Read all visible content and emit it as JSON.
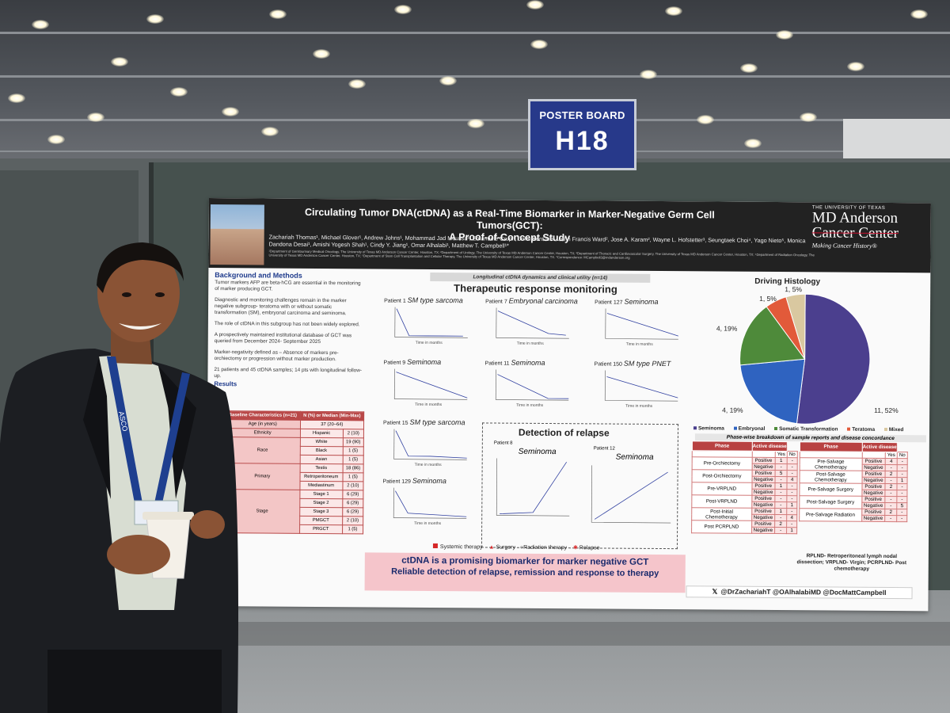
{
  "board_sign": {
    "line1": "POSTER BOARD",
    "line2": "H18"
  },
  "poster": {
    "title_line1": "Circulating Tumor DNA(ctDNA) as a Real-Time Biomarker in Marker-Negative Germ Cell Tumors(GCT):",
    "title_line2": "A Proof-of-Concept Study",
    "authors": "Zachariah Thomas¹, Michael Glover¹, Andrew Johns¹, Mohammad Jad Moussa¹, Emanuele Crupi¹, John Kent Lin¹, John Francis Ward², Jose A. Karam², Wayne L. Hofstetter³, Seungtaek Choi⁴, Yago Nieto⁵, Monica Dandona Desai¹, Amishi Yogesh Shah¹, Cindy Y. Jiang¹, Omar Alhalabi¹, Matthew T. Campbell¹*",
    "affiliations": "¹Department of Genitourinary Medical Oncology, The University of Texas MD Anderson Cancer Center, Houston, TX; ²Department of Urology, The University of Texas MD Anderson Cancer Center, Houston, TX; ³Department of Thoracic and Cardiovascular Surgery, The University of Texas MD Anderson Cancer Center, Houston, TX; ⁴Department of Radiation Oncology, The University of Texas MD Anderson Cancer Center, Houston, TX; ⁵Department of Stem Cell Transplantation and Cellular Therapy, The University of Texas MD Anderson Cancer Center, Houston, TX. *Correspondence: MCampbell3@mdanderson.org",
    "univ": {
      "l1": "THE UNIVERSITY OF TEXAS",
      "l2": "MD Anderson",
      "l3": "Cancer Center",
      "l4": "Making Cancer History®"
    },
    "background": {
      "title": "Background and Methods",
      "p1": "Tumor markers AFP are beta-hCG are essential in the monitoring of marker producing GCT.",
      "p2": "Diagnostic and monitoring challenges remain in the marker negative subgroup- teratoma with or without somatic transformation (SM), embryonal carcinoma and seminoma.",
      "p3": "The role of ctDNA in this subgroup has not been widely explored.",
      "p4": "A prospectively maintained institutional database of GCT was queried from December 2024- September 2025",
      "p5": "Marker-negativity defined as – Absence of markers pre-orchiectomy or progression without marker production.",
      "p6": "21 patients and 45 ctDNA samples; 14 pts with longitudinal follow-up.",
      "results": "Results"
    },
    "baseline_table": {
      "h1": "Baseline Characteristics (n=21)",
      "h2": "N (%) or Median (Min-Max)",
      "r_age": "Age (in years)",
      "r_age_v": "37 (20–64)",
      "eth": "Ethnicity",
      "hisp": "Hispanic",
      "hisp_v": "2 (10)",
      "race": "Race",
      "white": "White",
      "white_v": "19 (90)",
      "black": "Black",
      "black_v": "1 (5)",
      "asian": "Asian",
      "asian_v": "1 (5)",
      "primary": "Primary",
      "testis": "Testis",
      "testis_v": "18 (86)",
      "retro": "Retroperitoneum",
      "retro_v": "1 (5)",
      "media": "Mediastinum",
      "media_v": "2 (10)",
      "stage": "Stage",
      "s1": "Stage 1",
      "s1_v": "6 (29)",
      "s2": "Stage 2",
      "s2_v": "6 (29)",
      "s3": "Stage 3",
      "s3_v": "6 (29)",
      "pmgct": "PMGCT",
      "pmgct_v": "2 (10)",
      "prgct": "PRGCT",
      "prgct_v": "1 (5)"
    },
    "longitudinal_bar": "Longitudinal ctDNA dynamics and clinical utility (n=14)",
    "therapeutic_heading": "Therapeutic response monitoring",
    "patients": [
      {
        "pt": "Patient 1",
        "dx": "SM type sarcoma"
      },
      {
        "pt": "Patient 7",
        "dx": "Embryonal carcinoma"
      },
      {
        "pt": "Patient 127",
        "dx": "Seminoma"
      },
      {
        "pt": "Patient 9",
        "dx": "Seminoma"
      },
      {
        "pt": "Patient 11",
        "dx": "Seminoma"
      },
      {
        "pt": "Patient 150",
        "dx": "SM type PNET"
      },
      {
        "pt": "Patient 15",
        "dx": "SM type sarcoma"
      },
      {
        "pt": "Patient 129",
        "dx": "Seminoma"
      }
    ],
    "relapse": {
      "title": "Detection of relapse",
      "p8": "Patient 8",
      "p8dx": "Seminoma",
      "p12": "Patient 12",
      "p12dx": "Seminoma"
    },
    "time_label": "Time in months",
    "legend": {
      "systemic": "Systemic therapy",
      "surgery": "Surgery",
      "radiation": "Radiation therapy",
      "relapse": "Relapse"
    },
    "conclusion_line1": "ctDNA is a promising biomarker for marker negative GCT",
    "conclusion_line2": "Reliable detection of relapse, remission and response to therapy",
    "driving_histology": {
      "title": "Driving Histology",
      "labels": {
        "a": "1, 5%",
        "b": "1, 5%",
        "c": "4, 19%",
        "d": "4, 19%",
        "e": "11, 52%"
      },
      "legend": [
        "Seminoma",
        "Embryonal",
        "Somatic Transformation",
        "Teratoma",
        "Mixed"
      ]
    },
    "phase_title": "Phase-wise breakdown of sample reports and disease concordance",
    "phase_table": {
      "h_phase": "Phase",
      "h_active": "Active disease",
      "yes": "Yes",
      "no": "No",
      "left": [
        {
          "phase": "Pre-Orchiectomy",
          "rows": [
            [
              "Positive",
              "1",
              "-"
            ],
            [
              "Negative",
              "-",
              "-"
            ]
          ]
        },
        {
          "phase": "Post-Orchiectomy",
          "rows": [
            [
              "Positive",
              "5",
              "-"
            ],
            [
              "Negative",
              "-",
              "4"
            ]
          ]
        },
        {
          "phase": "Pre-VRPLND",
          "rows": [
            [
              "Positive",
              "1",
              "-"
            ],
            [
              "Negative",
              "-",
              "-"
            ]
          ]
        },
        {
          "phase": "Post-VRPLND",
          "rows": [
            [
              "Positive",
              "-",
              "-"
            ],
            [
              "Negative",
              "-",
              "1"
            ]
          ]
        },
        {
          "phase": "Post-Initial Chemotherapy",
          "rows": [
            [
              "Positive",
              "1",
              "-"
            ],
            [
              "Negative",
              "-",
              "4"
            ]
          ]
        },
        {
          "phase": "Post PCRPLND",
          "rows": [
            [
              "Positive",
              "2",
              "-"
            ],
            [
              "Negative",
              "-",
              "1"
            ]
          ]
        }
      ],
      "right": [
        {
          "phase": "Pre-Salvage Chemotherapy",
          "rows": [
            [
              "Positive",
              "4",
              "-"
            ],
            [
              "Negative",
              "-",
              "-"
            ]
          ]
        },
        {
          "phase": "Post-Salvage Chemotherapy",
          "rows": [
            [
              "Positive",
              "2",
              "-"
            ],
            [
              "Negative",
              "-",
              "1"
            ]
          ]
        },
        {
          "phase": "Pre-Salvage Surgery",
          "rows": [
            [
              "Positive",
              "2",
              "-"
            ],
            [
              "Negative",
              "-",
              "-"
            ]
          ]
        },
        {
          "phase": "Post-Salvage Surgery",
          "rows": [
            [
              "Positive",
              "-",
              "-"
            ],
            [
              "Negative",
              "-",
              "5"
            ]
          ]
        },
        {
          "phase": "Pre-Salvage Radiation",
          "rows": [
            [
              "Positive",
              "2",
              "-"
            ],
            [
              "Negative",
              "-",
              "-"
            ]
          ]
        }
      ]
    },
    "abbreviations": "RPLND- Retroperitoneal lymph nodal dissection; VRPLND- Virgin; PCRPLND- Post chemotherapy",
    "social": "@DrZachariahT @OAlhalabiMD @DocMattCampbell",
    "lanyard": "ASCO"
  },
  "colors": {
    "poster_red": "#b84242",
    "navy": "#1f3b8c",
    "sign_blue": "#27398a",
    "pie_seminoma": "#4b3f8e",
    "pie_embryonal": "#2f63c0",
    "pie_somatic": "#4e8a3a",
    "pie_teratoma": "#e25a3a",
    "pie_mixed": "#d9c8a0"
  }
}
